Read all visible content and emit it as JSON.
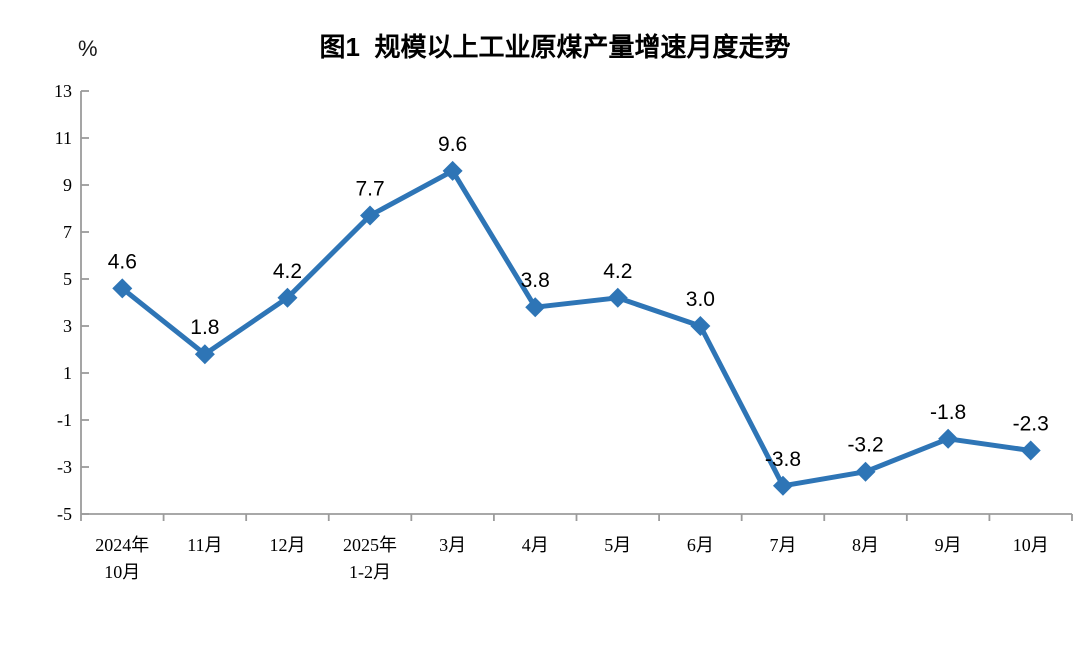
{
  "chart_data": {
    "type": "line",
    "title": "图1  规模以上工业原煤产量增速月度走势",
    "unit_label": "%",
    "categories": [
      "2024年\n10月",
      "11月",
      "12月",
      "2025年\n1-2月",
      "3月",
      "4月",
      "5月",
      "6月",
      "7月",
      "8月",
      "9月",
      "10月"
    ],
    "values": [
      4.6,
      1.8,
      4.2,
      7.7,
      9.6,
      3.8,
      4.2,
      3.0,
      -3.8,
      -3.2,
      -1.8,
      -2.3
    ],
    "data_labels": [
      "4.6",
      "1.8",
      "4.2",
      "7.7",
      "9.6",
      "3.8",
      "4.2",
      "3.0",
      "-3.8",
      "-3.2",
      "-1.8",
      "-2.3"
    ],
    "ylim": [
      -5,
      13
    ],
    "ytick_step": 2,
    "ytick_labels": [
      "-5",
      "-3",
      "-1",
      "1",
      "3",
      "5",
      "7",
      "9",
      "11",
      "13"
    ],
    "grid": false,
    "legend": "none",
    "marker": "diamond",
    "line_color": "#2E75B6",
    "axis_color": "#9B9B9B",
    "text_color": "#000000"
  }
}
